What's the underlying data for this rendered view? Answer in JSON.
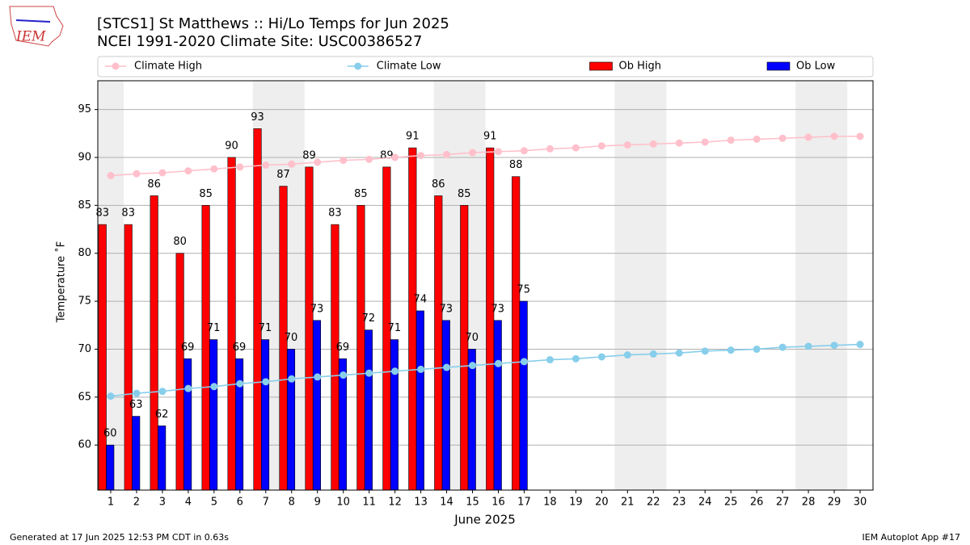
{
  "chart_data": {
    "type": "bar_line",
    "title": "[STCS1] St Matthews :: Hi/Lo Temps for Jun 2025",
    "subtitle": "NCEI 1991-2020 Climate Site: USC00386527",
    "ylabel": "Temperature ˚F",
    "xlabel": "June 2025",
    "logo": "IEM",
    "footer_left": "Generated at 17 Jun 2025 12:53 PM CDT in 0.63s",
    "footer_right": "IEM Autoplot App #17",
    "x": [
      1,
      2,
      3,
      4,
      5,
      6,
      7,
      8,
      9,
      10,
      11,
      12,
      13,
      14,
      15,
      16,
      17,
      18,
      19,
      20,
      21,
      22,
      23,
      24,
      25,
      26,
      27,
      28,
      29,
      30
    ],
    "xlim": [
      0.5,
      30.5
    ],
    "xticks": [
      1,
      2,
      3,
      4,
      5,
      6,
      7,
      8,
      9,
      10,
      11,
      12,
      13,
      14,
      15,
      16,
      17,
      18,
      19,
      20,
      21,
      22,
      23,
      24,
      25,
      26,
      27,
      28,
      29,
      30
    ],
    "ylim": [
      55.3,
      98
    ],
    "yticks": [
      60,
      65,
      70,
      75,
      80,
      85,
      90,
      95
    ],
    "grid": true,
    "legend": "top",
    "series": [
      {
        "name": "Climate High",
        "kind": "line",
        "color": "#ffc0cb",
        "values": [
          88.1,
          88.3,
          88.4,
          88.6,
          88.8,
          89.0,
          89.2,
          89.3,
          89.5,
          89.7,
          89.8,
          90.0,
          90.2,
          90.3,
          90.5,
          90.6,
          90.7,
          90.9,
          91.0,
          91.2,
          91.3,
          91.4,
          91.5,
          91.6,
          91.8,
          91.9,
          92.0,
          92.1,
          92.2,
          92.2
        ]
      },
      {
        "name": "Climate Low",
        "kind": "line",
        "color": "#87ceeb",
        "values": [
          65.1,
          65.4,
          65.6,
          65.9,
          66.1,
          66.4,
          66.6,
          66.9,
          67.1,
          67.3,
          67.5,
          67.7,
          67.9,
          68.1,
          68.3,
          68.5,
          68.7,
          68.9,
          69.0,
          69.2,
          69.4,
          69.5,
          69.6,
          69.8,
          69.9,
          70.0,
          70.2,
          70.3,
          70.4,
          70.5
        ]
      },
      {
        "name": "Ob High",
        "kind": "bar",
        "color": "#ff0000",
        "values": [
          83,
          83,
          86,
          80,
          85,
          90,
          93,
          87,
          89,
          83,
          85,
          89,
          91,
          86,
          85,
          91,
          88,
          null,
          null,
          null,
          null,
          null,
          null,
          null,
          null,
          null,
          null,
          null,
          null,
          null
        ]
      },
      {
        "name": "Ob Low",
        "kind": "bar",
        "color": "#0000ff",
        "values": [
          60,
          63,
          62,
          69,
          71,
          69,
          71,
          70,
          73,
          69,
          72,
          71,
          74,
          73,
          70,
          73,
          75,
          null,
          null,
          null,
          null,
          null,
          null,
          null,
          null,
          null,
          null,
          null,
          null,
          null
        ]
      }
    ]
  }
}
